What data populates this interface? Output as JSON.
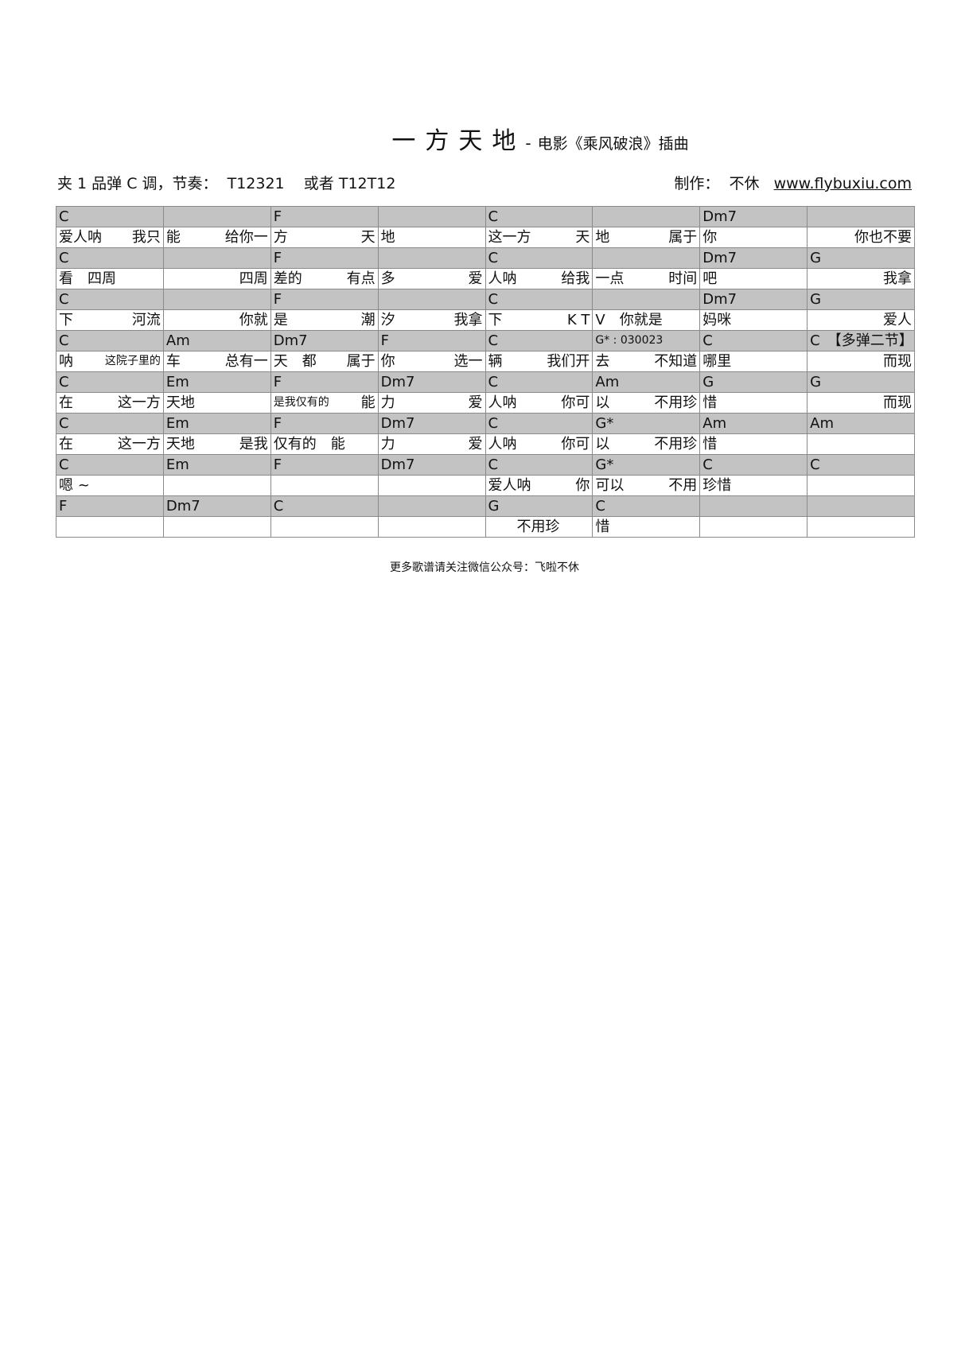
{
  "header": {
    "title": "一方天地",
    "separator": "-",
    "subtitle": "电影《乘风破浪》插曲",
    "info": "夹 1 品弹 C 调，节奏：  T12321    或者 T12T12",
    "credit_label": "制作：  不休   ",
    "website": "www.flybuxiu.com"
  },
  "rows": [
    {
      "type": "chord",
      "cells": [
        [
          "C",
          ""
        ],
        [
          "",
          ""
        ],
        [
          "F",
          ""
        ],
        [
          "",
          ""
        ],
        [
          "C",
          ""
        ],
        [
          "",
          ""
        ],
        [
          "Dm7",
          ""
        ],
        [
          "",
          ""
        ]
      ]
    },
    {
      "type": "lyric",
      "cells": [
        [
          "爱人呐",
          "我只"
        ],
        [
          "能",
          "给你一"
        ],
        [
          "方",
          "天"
        ],
        [
          "地",
          ""
        ],
        [
          "这一方",
          "天"
        ],
        [
          "地",
          "属于"
        ],
        [
          "你",
          ""
        ],
        [
          "",
          "你也不要"
        ]
      ]
    },
    {
      "type": "chord",
      "cells": [
        [
          "C",
          ""
        ],
        [
          "",
          ""
        ],
        [
          "F",
          ""
        ],
        [
          "",
          ""
        ],
        [
          "C",
          ""
        ],
        [
          "",
          ""
        ],
        [
          "Dm7",
          ""
        ],
        [
          "G",
          ""
        ]
      ]
    },
    {
      "type": "lyric",
      "cells": [
        [
          "看　四周",
          ""
        ],
        [
          "",
          "四周"
        ],
        [
          "差的",
          "有点"
        ],
        [
          "多",
          "爱"
        ],
        [
          "人呐",
          "给我"
        ],
        [
          "一点",
          "时间"
        ],
        [
          "吧",
          ""
        ],
        [
          "",
          "我拿"
        ]
      ]
    },
    {
      "type": "chord",
      "cells": [
        [
          "C",
          ""
        ],
        [
          "",
          ""
        ],
        [
          "F",
          ""
        ],
        [
          "",
          ""
        ],
        [
          "C",
          ""
        ],
        [
          "",
          ""
        ],
        [
          "Dm7",
          ""
        ],
        [
          "G",
          ""
        ]
      ]
    },
    {
      "type": "lyric",
      "cells": [
        [
          "下",
          "河流"
        ],
        [
          "",
          "你就"
        ],
        [
          "是",
          "潮"
        ],
        [
          "汐",
          "我拿"
        ],
        [
          "下",
          "K T"
        ],
        [
          "V　你就是",
          ""
        ],
        [
          "妈咪",
          ""
        ],
        [
          "",
          "爱人"
        ]
      ]
    },
    {
      "type": "chord",
      "cells": [
        [
          "C",
          ""
        ],
        [
          "Am",
          ""
        ],
        [
          "Dm7",
          ""
        ],
        [
          "F",
          ""
        ],
        [
          "C",
          ""
        ],
        [
          "G* : 030023",
          ""
        ],
        [
          "C",
          ""
        ],
        [
          "C　【多弹二节】",
          ""
        ]
      ]
    },
    {
      "type": "lyric",
      "cells": [
        [
          "呐",
          "这院子里的"
        ],
        [
          "车",
          "总有一"
        ],
        [
          "天　都",
          "属于"
        ],
        [
          "你",
          "选一"
        ],
        [
          "辆",
          "我们开"
        ],
        [
          "去",
          "不知道"
        ],
        [
          "哪里",
          ""
        ],
        [
          "",
          "而现"
        ]
      ]
    },
    {
      "type": "chord",
      "cells": [
        [
          "C",
          ""
        ],
        [
          "Em",
          ""
        ],
        [
          "F",
          ""
        ],
        [
          "Dm7",
          ""
        ],
        [
          "C",
          ""
        ],
        [
          "Am",
          ""
        ],
        [
          "G",
          ""
        ],
        [
          "G",
          ""
        ]
      ]
    },
    {
      "type": "lyric",
      "cells": [
        [
          "在",
          "这一方"
        ],
        [
          "天地",
          ""
        ],
        [
          "是我仅有的",
          "能"
        ],
        [
          "力",
          "爱"
        ],
        [
          "人呐",
          "你可"
        ],
        [
          "以",
          "不用珍"
        ],
        [
          "惜",
          ""
        ],
        [
          "",
          "而现"
        ]
      ]
    },
    {
      "type": "chord",
      "cells": [
        [
          "C",
          ""
        ],
        [
          "Em",
          ""
        ],
        [
          "F",
          ""
        ],
        [
          "Dm7",
          ""
        ],
        [
          "C",
          ""
        ],
        [
          "G*",
          ""
        ],
        [
          "Am",
          ""
        ],
        [
          "Am",
          ""
        ]
      ]
    },
    {
      "type": "lyric",
      "cells": [
        [
          "在",
          "这一方"
        ],
        [
          "天地",
          "是我"
        ],
        [
          "仅有的　能",
          ""
        ],
        [
          "力",
          "爱"
        ],
        [
          "人呐",
          "你可"
        ],
        [
          "以",
          "不用珍"
        ],
        [
          "惜",
          ""
        ],
        [
          "",
          ""
        ]
      ]
    },
    {
      "type": "chord",
      "cells": [
        [
          "C",
          ""
        ],
        [
          "Em",
          ""
        ],
        [
          "F",
          ""
        ],
        [
          "Dm7",
          ""
        ],
        [
          "C",
          ""
        ],
        [
          "G*",
          ""
        ],
        [
          "C",
          ""
        ],
        [
          "C",
          ""
        ]
      ]
    },
    {
      "type": "lyric",
      "cells": [
        [
          "嗯 ~",
          ""
        ],
        [
          "",
          ""
        ],
        [
          "",
          ""
        ],
        [
          "",
          ""
        ],
        [
          "爱人呐",
          "你"
        ],
        [
          "可以",
          "不用"
        ],
        [
          "珍惜",
          ""
        ],
        [
          "",
          ""
        ]
      ]
    },
    {
      "type": "chord",
      "cells": [
        [
          "F",
          ""
        ],
        [
          "Dm7",
          ""
        ],
        [
          "C",
          ""
        ],
        [
          "",
          ""
        ],
        [
          "G",
          ""
        ],
        [
          "C",
          ""
        ],
        [
          "",
          ""
        ],
        [
          "",
          ""
        ]
      ]
    },
    {
      "type": "lyric",
      "cells": [
        [
          "",
          ""
        ],
        [
          "",
          ""
        ],
        [
          "",
          ""
        ],
        [
          "",
          ""
        ],
        [
          "　　不用珍",
          ""
        ],
        [
          "惜",
          ""
        ],
        [
          "",
          ""
        ],
        [
          "",
          ""
        ]
      ]
    }
  ],
  "footer": "更多歌谱请关注微信公众号：飞啦不休",
  "colors": {
    "chord_row_bg": "#c3c3c3",
    "border": "#8a8a8a"
  }
}
